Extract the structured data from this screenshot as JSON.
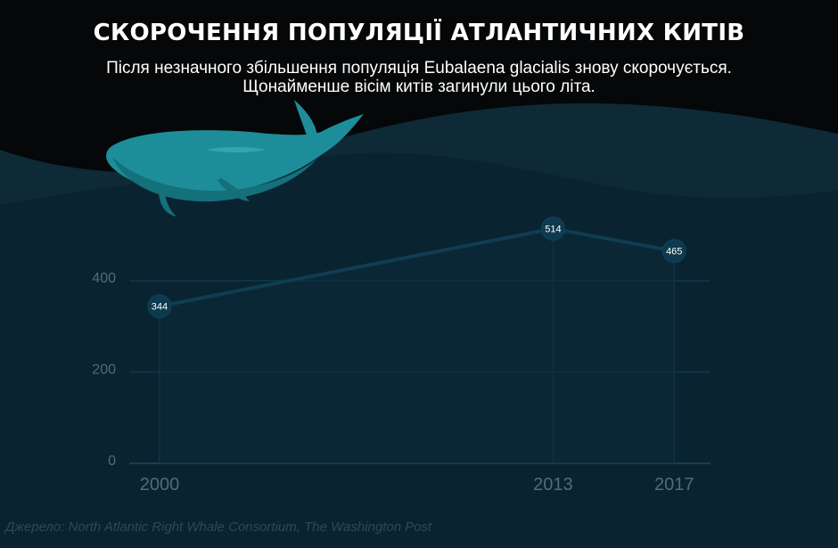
{
  "header": {
    "title": "СКОРОЧЕННЯ ПОПУЛЯЦІЇ АТЛАНТИЧНИХ КИТІВ",
    "subtitle_line1": "Після незначного збільшення популяція Eubalaena glacialis знову скорочується.",
    "subtitle_line2": "Щонайменше вісім китів загинули цього літа."
  },
  "footer": {
    "source": "Джерело: North Atlantic Right Whale Consortium, The Washington Post"
  },
  "colors": {
    "background": "#050708",
    "sea_back": "#0d2a36",
    "sea_front": "#0a2330",
    "line": "#0f3d52",
    "point": "#0d3a4e",
    "axis_text": "#4f6d7b",
    "whale": "#1d8e99"
  },
  "illustration": {
    "icon": "whale-icon"
  },
  "chart_data": {
    "type": "line",
    "title": "СКОРОЧЕННЯ ПОПУЛЯЦІЇ АТЛАНТИЧНИХ КИТІВ",
    "x": [
      2000,
      2013,
      2017
    ],
    "values": [
      344,
      514,
      465
    ],
    "data_labels": [
      "344",
      "514",
      "465"
    ],
    "x_tick_labels": [
      "2000",
      "2013",
      "2017"
    ],
    "y_ticks": [
      0,
      200,
      400
    ],
    "y_tick_labels": [
      "0",
      "200",
      "400"
    ],
    "xlim": [
      1999,
      2018.2
    ],
    "ylim": [
      0,
      600
    ],
    "xlabel": "",
    "ylabel": "",
    "grid": true,
    "legend": "none"
  }
}
